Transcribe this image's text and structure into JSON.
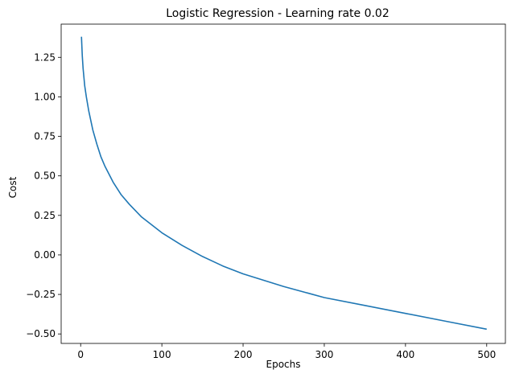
{
  "chart_data": {
    "type": "line",
    "title": "Logistic Regression - Learning rate 0.02",
    "xlabel": "Epochs",
    "ylabel": "Cost",
    "xlim": [
      -24,
      524
    ],
    "ylim": [
      -0.56,
      1.46
    ],
    "xticks": [
      0,
      100,
      200,
      300,
      400,
      500
    ],
    "yticks": [
      -0.5,
      -0.25,
      0.0,
      0.25,
      0.5,
      0.75,
      1.0,
      1.25
    ],
    "xtick_labels": [
      "0",
      "100",
      "200",
      "300",
      "400",
      "500"
    ],
    "ytick_labels": [
      "−0.50",
      "−0.25",
      "0.00",
      "0.25",
      "0.50",
      "0.75",
      "1.00",
      "1.25"
    ],
    "grid": false,
    "series": [
      {
        "color": "#1f77b4",
        "x": [
          1,
          2,
          3,
          5,
          7,
          10,
          15,
          20,
          25,
          30,
          40,
          50,
          60,
          75,
          100,
          125,
          150,
          175,
          200,
          250,
          300,
          350,
          400,
          450,
          500
        ],
        "y": [
          1.38,
          1.26,
          1.18,
          1.07,
          1.0,
          0.91,
          0.79,
          0.7,
          0.62,
          0.56,
          0.46,
          0.38,
          0.32,
          0.24,
          0.14,
          0.06,
          -0.01,
          -0.07,
          -0.12,
          -0.2,
          -0.27,
          -0.32,
          -0.37,
          -0.42,
          -0.47
        ]
      }
    ]
  }
}
